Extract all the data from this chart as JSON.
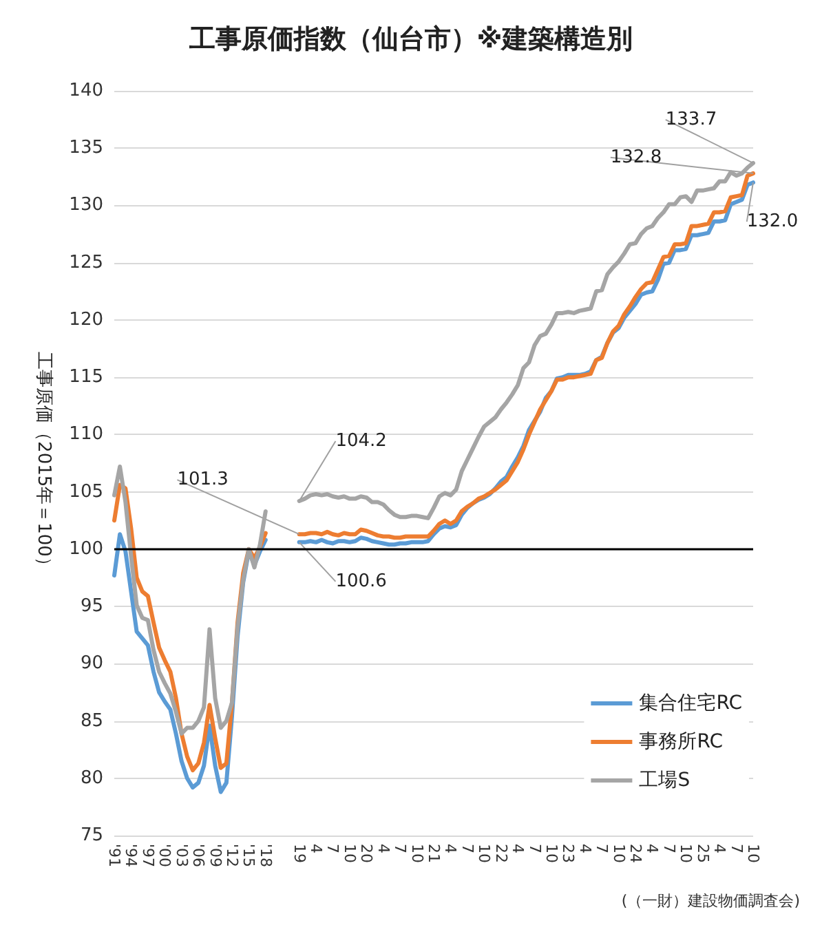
{
  "chart_data": {
    "type": "line",
    "title": "工事原価指数（仙台市）※建築構造別",
    "ylabel": "工事原価（2015年＝100）",
    "categories": [
      "'91",
      null,
      null,
      "'94",
      null,
      null,
      "'97",
      null,
      null,
      "'00",
      null,
      null,
      "'03",
      null,
      null,
      "'06",
      null,
      null,
      "'09",
      null,
      null,
      "'12",
      null,
      null,
      "'15",
      null,
      null,
      "'18",
      null,
      null,
      null,
      null,
      null,
      "19",
      null,
      null,
      "4",
      null,
      null,
      "7",
      null,
      null,
      "10",
      null,
      null,
      "20",
      null,
      null,
      "4",
      null,
      null,
      "7",
      null,
      null,
      "10",
      null,
      null,
      "21",
      null,
      null,
      "4",
      null,
      null,
      "7",
      null,
      null,
      "10",
      null,
      null,
      "22",
      null,
      null,
      "4",
      null,
      null,
      "7",
      null,
      null,
      "10",
      null,
      null,
      "23",
      null,
      null,
      "4",
      null,
      null,
      "7",
      null,
      null,
      "10",
      null,
      null,
      "24",
      null,
      null,
      "4",
      null,
      null,
      "7",
      null,
      null,
      "10",
      null,
      null,
      "25",
      null,
      null,
      "4",
      null,
      null,
      "7",
      null,
      null,
      "10"
    ],
    "series": [
      {
        "name": "集合住宅RC",
        "color": "#5b9bd5",
        "values": [
          97.7,
          101.3,
          99.8,
          96.3,
          92.8,
          92.2,
          91.6,
          89.3,
          87.5,
          86.7,
          86.0,
          83.9,
          81.5,
          80.0,
          79.2,
          79.6,
          81.1,
          84.6,
          81.1,
          78.8,
          79.6,
          85.4,
          92.4,
          97.1,
          99.8,
          98.6,
          99.8,
          100.8,
          null,
          null,
          null,
          null,
          null,
          100.6,
          100.6,
          100.7,
          100.6,
          100.8,
          100.6,
          100.5,
          100.7,
          100.7,
          100.6,
          100.7,
          101.0,
          100.9,
          100.7,
          100.6,
          100.5,
          100.4,
          100.4,
          100.5,
          100.5,
          100.6,
          100.6,
          100.6,
          100.7,
          101.3,
          101.8,
          102.0,
          101.9,
          102.1,
          103.0,
          103.6,
          104.0,
          104.3,
          104.5,
          104.8,
          105.3,
          105.9,
          106.3,
          107.2,
          108.0,
          109.0,
          110.4,
          111.2,
          112.0,
          113.2,
          113.8,
          114.9,
          115.0,
          115.2,
          115.2,
          115.2,
          115.3,
          115.5,
          116.5,
          116.8,
          118.0,
          118.9,
          119.3,
          120.2,
          120.8,
          121.4,
          122.2,
          122.4,
          122.5,
          123.5,
          124.9,
          125.0,
          126.1,
          126.1,
          126.2,
          127.4,
          127.4,
          127.5,
          127.6,
          128.6,
          128.6,
          128.7,
          130.1,
          130.3,
          130.5,
          131.8,
          132.0
        ],
        "value_labels": [
          null,
          null,
          null,
          null,
          null,
          null,
          null,
          null,
          null,
          null,
          null,
          null,
          null,
          null,
          null,
          null,
          null,
          null,
          null,
          null,
          null,
          null,
          null,
          null,
          null,
          null,
          null,
          null,
          null,
          null,
          null,
          null,
          null,
          "100.6",
          null,
          null,
          null,
          null,
          null,
          null,
          null,
          null,
          null,
          null,
          null,
          null,
          null,
          null,
          null,
          null,
          null,
          null,
          null,
          null,
          null,
          null,
          null,
          null,
          null,
          null,
          null,
          null,
          null,
          null,
          null,
          null,
          null,
          null,
          null,
          null,
          null,
          null,
          null,
          null,
          null,
          null,
          null,
          null,
          null,
          null,
          null,
          null,
          null,
          null,
          null,
          null,
          null,
          null,
          null,
          null,
          null,
          null,
          null,
          null,
          null,
          null,
          null,
          null,
          null,
          null,
          null,
          null,
          null,
          null,
          null,
          null,
          null,
          null,
          null,
          null,
          null,
          null,
          null,
          null,
          "132.0"
        ]
      },
      {
        "name": "事務所RC",
        "color": "#ed7d31",
        "values": [
          102.5,
          105.6,
          105.3,
          101.8,
          97.5,
          96.3,
          95.9,
          93.6,
          91.4,
          90.3,
          89.3,
          87.0,
          83.9,
          81.9,
          80.7,
          81.3,
          83.1,
          86.4,
          83.5,
          80.9,
          81.3,
          86.6,
          93.6,
          97.9,
          100.0,
          99.2,
          100.2,
          101.4,
          null,
          null,
          null,
          null,
          null,
          101.3,
          101.3,
          101.4,
          101.4,
          101.3,
          101.5,
          101.3,
          101.2,
          101.4,
          101.3,
          101.3,
          101.7,
          101.6,
          101.4,
          101.2,
          101.1,
          101.1,
          101.0,
          101.0,
          101.1,
          101.1,
          101.1,
          101.1,
          101.1,
          101.6,
          102.2,
          102.5,
          102.2,
          102.5,
          103.3,
          103.7,
          104.0,
          104.4,
          104.6,
          104.9,
          105.2,
          105.6,
          106.0,
          106.8,
          107.6,
          108.7,
          110.0,
          111.1,
          112.2,
          113.0,
          113.8,
          114.8,
          114.8,
          115.0,
          115.0,
          115.1,
          115.2,
          115.3,
          116.5,
          116.7,
          118.0,
          119.0,
          119.5,
          120.5,
          121.2,
          122.0,
          122.7,
          123.2,
          123.3,
          124.4,
          125.5,
          125.6,
          126.6,
          126.6,
          126.7,
          128.2,
          128.2,
          128.3,
          128.4,
          129.4,
          129.4,
          129.5,
          130.7,
          130.8,
          130.9,
          132.6,
          132.8
        ],
        "value_labels": [
          null,
          null,
          null,
          null,
          null,
          null,
          null,
          null,
          null,
          null,
          null,
          null,
          null,
          null,
          null,
          null,
          null,
          null,
          null,
          null,
          null,
          null,
          null,
          null,
          null,
          null,
          null,
          null,
          null,
          null,
          null,
          null,
          null,
          "101.3",
          null,
          null,
          null,
          null,
          null,
          null,
          null,
          null,
          null,
          null,
          null,
          null,
          null,
          null,
          null,
          null,
          null,
          null,
          null,
          null,
          null,
          null,
          null,
          null,
          null,
          null,
          null,
          null,
          null,
          null,
          null,
          null,
          null,
          null,
          null,
          null,
          null,
          null,
          null,
          null,
          null,
          null,
          null,
          null,
          null,
          null,
          null,
          null,
          null,
          null,
          null,
          null,
          null,
          null,
          null,
          null,
          null,
          null,
          null,
          null,
          null,
          null,
          null,
          null,
          null,
          null,
          null,
          null,
          null,
          null,
          null,
          null,
          null,
          null,
          null,
          null,
          null,
          null,
          null,
          null,
          "132.8"
        ]
      },
      {
        "name": "工場S",
        "color": "#a5a5a5",
        "values": [
          104.7,
          107.2,
          104.1,
          99.4,
          95.1,
          94.0,
          93.8,
          91.2,
          89.3,
          88.3,
          87.4,
          85.8,
          83.9,
          84.4,
          84.4,
          85.0,
          86.2,
          93.0,
          87.0,
          84.4,
          85.0,
          86.6,
          93.2,
          97.3,
          100.0,
          98.4,
          100.4,
          103.3,
          null,
          null,
          null,
          null,
          null,
          104.2,
          104.4,
          104.7,
          104.8,
          104.7,
          104.8,
          104.6,
          104.5,
          104.6,
          104.4,
          104.4,
          104.6,
          104.5,
          104.1,
          104.1,
          103.9,
          103.4,
          103.0,
          102.8,
          102.8,
          102.9,
          102.9,
          102.8,
          102.7,
          103.6,
          104.6,
          104.9,
          104.7,
          105.2,
          106.8,
          107.8,
          108.8,
          109.8,
          110.7,
          111.1,
          111.5,
          112.2,
          112.8,
          113.5,
          114.3,
          115.8,
          116.3,
          117.8,
          118.6,
          118.8,
          119.6,
          120.6,
          120.6,
          120.7,
          120.6,
          120.8,
          120.9,
          121.0,
          122.5,
          122.6,
          124.0,
          124.6,
          125.1,
          125.8,
          126.6,
          126.7,
          127.5,
          128.0,
          128.2,
          128.9,
          129.4,
          130.1,
          130.1,
          130.7,
          130.8,
          130.3,
          131.3,
          131.3,
          131.4,
          131.5,
          132.1,
          132.1,
          132.9,
          132.6,
          132.8,
          133.3,
          133.7
        ],
        "value_labels": [
          null,
          null,
          null,
          null,
          null,
          null,
          null,
          null,
          null,
          null,
          null,
          null,
          null,
          null,
          null,
          null,
          null,
          null,
          null,
          null,
          null,
          null,
          null,
          null,
          null,
          null,
          null,
          null,
          null,
          null,
          null,
          null,
          null,
          "104.2",
          null,
          null,
          null,
          null,
          null,
          null,
          null,
          null,
          null,
          null,
          null,
          null,
          null,
          null,
          null,
          null,
          null,
          null,
          null,
          null,
          null,
          null,
          null,
          null,
          null,
          null,
          null,
          null,
          null,
          null,
          null,
          null,
          null,
          null,
          null,
          null,
          null,
          null,
          null,
          null,
          null,
          null,
          null,
          null,
          null,
          null,
          null,
          null,
          null,
          null,
          null,
          null,
          null,
          null,
          null,
          null,
          null,
          null,
          null,
          null,
          null,
          null,
          null,
          null,
          null,
          null,
          null,
          null,
          null,
          null,
          null,
          null,
          null,
          null,
          null,
          null,
          null,
          null,
          null,
          null,
          "133.7"
        ]
      }
    ],
    "ylim": [
      75,
      140
    ],
    "yticks": [
      75,
      80,
      85,
      90,
      95,
      100,
      105,
      110,
      115,
      120,
      125,
      130,
      135,
      140
    ],
    "ref_lines": [
      {
        "axis": "y",
        "value": 100,
        "color": "#000000"
      }
    ],
    "annotations": [
      "(（一財）建設物価調査会)"
    ],
    "grid": "y",
    "legend": "bottom right",
    "marker": "none",
    "line_style": "solid"
  }
}
